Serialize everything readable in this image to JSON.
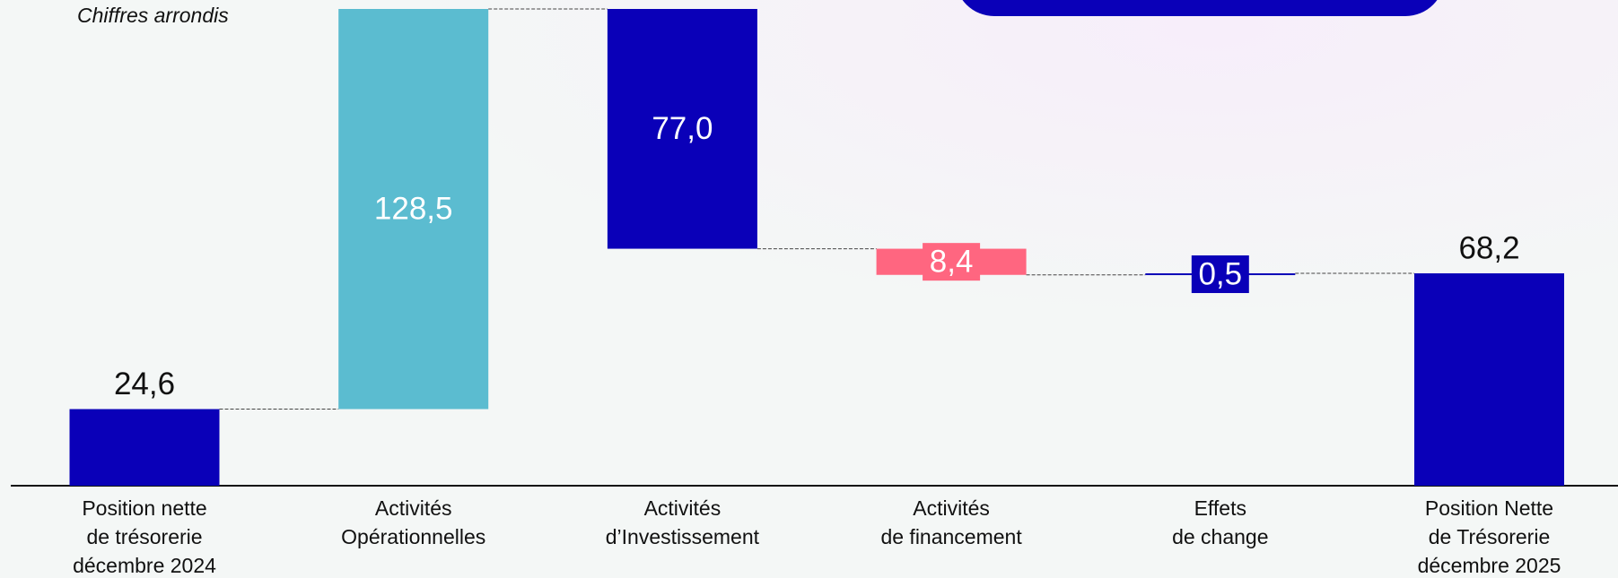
{
  "chart_data": {
    "type": "waterfall",
    "subtitle": "Chiffres arrondis",
    "categories": [
      "Position nette\nde trésorerie\ndécembre 2024",
      "Activités\nOpérationnelles",
      "Activités\nd’Investissement",
      "Activités\nde financement",
      "Effets\nde change",
      "Position Nette\nde Trésorerie\ndécembre 2025"
    ],
    "measures": [
      "absolute",
      "relative",
      "relative",
      "relative",
      "relative",
      "total"
    ],
    "values": [
      24.6,
      128.5,
      -77.0,
      -8.4,
      0.5,
      68.2
    ],
    "value_labels": [
      "24,6",
      "128,5",
      "77,0",
      "8,4",
      "0,5",
      "68,2"
    ],
    "colors": [
      "#0a00b8",
      "#5bbcd0",
      "#0a00b8",
      "#ff6680",
      "#0a00b8",
      "#0a00b8"
    ]
  }
}
